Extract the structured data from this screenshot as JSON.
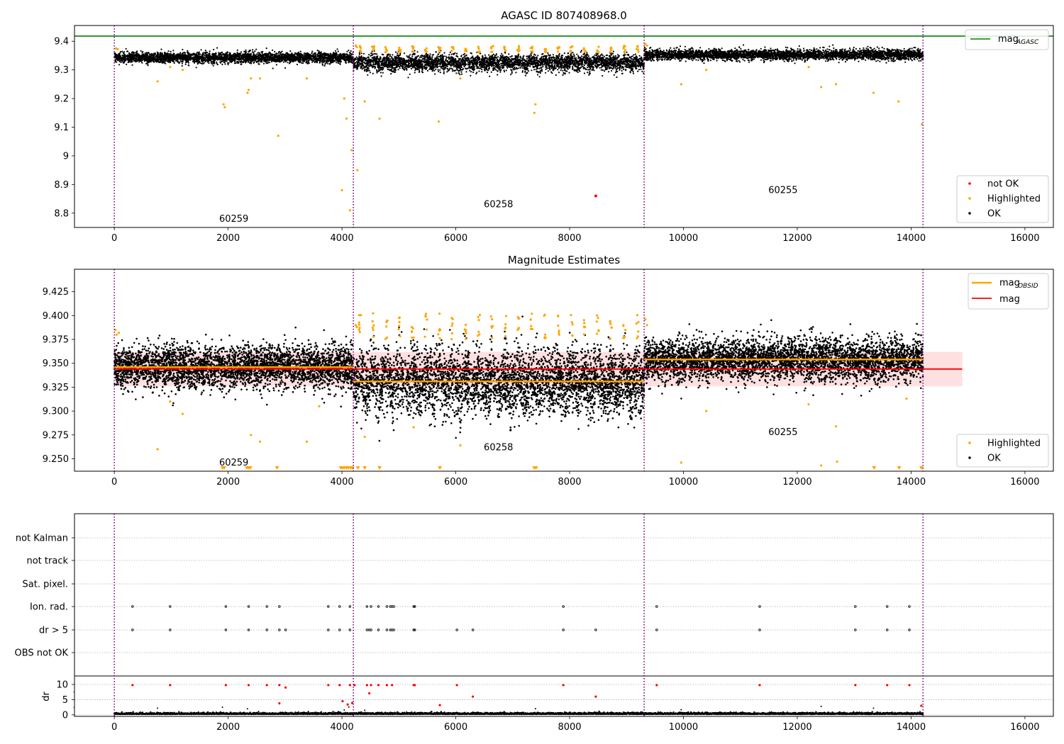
{
  "chart_data": [
    {
      "type": "scatter",
      "title": "AGASC ID 807408968.0",
      "xlim": [
        -700,
        16500
      ],
      "ylim": [
        8.75,
        9.455
      ],
      "xticks": [
        0,
        2000,
        4000,
        6000,
        8000,
        10000,
        12000,
        14000,
        16000
      ],
      "yticks": [
        8.8,
        8.9,
        9.0,
        9.1,
        9.2,
        9.3,
        9.4
      ],
      "mag_agasc": 9.418,
      "obsid_boundaries": [
        0,
        4200,
        9310,
        14210
      ],
      "obsid_labels": [
        {
          "text": "60259",
          "x": 2100,
          "y": 8.78
        },
        {
          "text": "60258",
          "x": 6750,
          "y": 8.83
        },
        {
          "text": "60255",
          "x": 11750,
          "y": 8.88
        }
      ],
      "legend_top": {
        "placement": "top-right",
        "entries": [
          {
            "label": "mag",
            "sub": "AGASC",
            "color": "#008000"
          }
        ]
      },
      "legend_bottom": {
        "placement": "bottom-right",
        "entries": [
          {
            "label": "not OK",
            "color": "#ff0000"
          },
          {
            "label": "Highlighted",
            "color": "#ffa500"
          },
          {
            "label": "OK",
            "color": "#000000"
          }
        ]
      },
      "segments": [
        {
          "x0": 0,
          "x1": 4200,
          "mean": 9.343,
          "spread": 0.009,
          "cycles": 0
        },
        {
          "x0": 4200,
          "x1": 9310,
          "mean": 9.325,
          "spread": 0.014,
          "cycles": 22
        },
        {
          "x0": 9310,
          "x1": 14210,
          "mean": 9.353,
          "spread": 0.009,
          "cycles": 0
        }
      ],
      "highlighted_points": [
        [
          760,
          9.26
        ],
        [
          1200,
          9.3
        ],
        [
          1920,
          9.18
        ],
        [
          1940,
          9.17
        ],
        [
          2340,
          9.22
        ],
        [
          2400,
          9.27
        ],
        [
          2360,
          9.23
        ],
        [
          2560,
          9.27
        ],
        [
          2880,
          9.07
        ],
        [
          3380,
          9.27
        ],
        [
          4000,
          8.88
        ],
        [
          4040,
          9.2
        ],
        [
          4080,
          9.13
        ],
        [
          4140,
          8.81
        ],
        [
          4170,
          9.02
        ],
        [
          4270,
          8.95
        ],
        [
          4400,
          9.19
        ],
        [
          4660,
          9.13
        ],
        [
          5700,
          9.12
        ],
        [
          6080,
          9.27
        ],
        [
          7400,
          9.18
        ],
        [
          7380,
          9.15
        ],
        [
          9960,
          9.25
        ],
        [
          10400,
          9.3
        ],
        [
          12200,
          9.31
        ],
        [
          12420,
          9.24
        ],
        [
          12680,
          9.25
        ],
        [
          13340,
          9.22
        ],
        [
          13780,
          9.19
        ],
        [
          14190,
          9.11
        ],
        [
          980,
          9.31
        ]
      ],
      "not_ok_points": [
        [
          8460,
          8.86
        ]
      ]
    },
    {
      "type": "scatter",
      "title": "Magnitude Estimates",
      "xlim": [
        -700,
        16500
      ],
      "ylim": [
        9.237,
        9.4485
      ],
      "xticks": [
        0,
        2000,
        4000,
        6000,
        8000,
        10000,
        12000,
        14000,
        16000
      ],
      "yticks": [
        9.25,
        9.275,
        9.3,
        9.325,
        9.35,
        9.375,
        9.4,
        9.425
      ],
      "ytick_labels": [
        "9.250",
        "9.275",
        "9.300",
        "9.325",
        "9.350",
        "9.375",
        "9.400",
        "9.425"
      ],
      "mag": 9.344,
      "mag_band": [
        9.326,
        9.362
      ],
      "mag_band_xrange": [
        0,
        14900
      ],
      "obsid_means": [
        {
          "x0": 0,
          "x1": 4200,
          "value": 9.346
        },
        {
          "x0": 4200,
          "x1": 9310,
          "value": 9.331
        },
        {
          "x0": 9310,
          "x1": 14210,
          "value": 9.354
        }
      ],
      "obsid_boundaries": [
        0,
        4200,
        9310,
        14210
      ],
      "obsid_labels": [
        {
          "text": "60259",
          "x": 2100,
          "y": 9.246
        },
        {
          "text": "60258",
          "x": 6750,
          "y": 9.262
        },
        {
          "text": "60255",
          "x": 11750,
          "y": 9.278
        }
      ],
      "legend_top": {
        "placement": "top-right",
        "entries": [
          {
            "label": "mag",
            "sub": "OBSID",
            "color": "#ffa500"
          },
          {
            "label": "mag",
            "sub": "",
            "color": "#ff0000"
          }
        ]
      },
      "legend_bottom": {
        "placement": "bottom-right",
        "entries": [
          {
            "label": "Highlighted",
            "color": "#ffa500"
          },
          {
            "label": "OK",
            "color": "#000000"
          }
        ]
      },
      "segments": [
        {
          "x0": 0,
          "x1": 4200,
          "mean": 9.346,
          "spread": 0.011,
          "cycles": 0
        },
        {
          "x0": 4200,
          "x1": 9310,
          "mean": 9.331,
          "spread": 0.017,
          "cycles": 22
        },
        {
          "x0": 9310,
          "x1": 14210,
          "mean": 9.354,
          "spread": 0.011,
          "cycles": 0
        }
      ],
      "highlighted_points": [
        [
          760,
          9.26
        ],
        [
          1200,
          9.297
        ],
        [
          980,
          9.31
        ],
        [
          2400,
          9.275
        ],
        [
          2560,
          9.268
        ],
        [
          3380,
          9.268
        ],
        [
          3600,
          9.305
        ],
        [
          4400,
          9.273
        ],
        [
          5260,
          9.283
        ],
        [
          6080,
          9.264
        ],
        [
          10400,
          9.3
        ],
        [
          12200,
          9.307
        ],
        [
          12680,
          9.284
        ],
        [
          13920,
          9.313
        ],
        [
          9960,
          9.246
        ],
        [
          12420,
          9.243
        ],
        [
          12700,
          9.247
        ]
      ],
      "clipped_points_x": [
        1900,
        1930,
        2330,
        2360,
        2390,
        2860,
        3980,
        4010,
        4040,
        4080,
        4110,
        4150,
        4180,
        4280,
        4400,
        4660,
        5720,
        7380,
        7410,
        13350,
        13790,
        14180
      ]
    },
    {
      "type": "scatter",
      "title": "",
      "xlim": [
        -700,
        16500
      ],
      "xticks": [
        0,
        2000,
        4000,
        6000,
        8000,
        10000,
        12000,
        14000,
        16000
      ],
      "flag_rows": [
        "not Kalman",
        "not track",
        "Sat. pixel.",
        "Ion. rad.",
        "dr > 5",
        "OBS not OK"
      ],
      "obsid_boundaries": [
        0,
        4200,
        9310,
        14210
      ],
      "ion_rad_x": [
        320,
        980,
        1960,
        2360,
        2680,
        2900,
        3760,
        3960,
        4140,
        4440,
        4510,
        4640,
        4790,
        4850,
        4880,
        4910,
        5260,
        5280,
        7890,
        9530,
        11340,
        13020,
        13580,
        13970
      ],
      "dr5_x": [
        320,
        980,
        1960,
        2360,
        2680,
        2900,
        3010,
        3760,
        3960,
        4140,
        4440,
        4480,
        4510,
        4640,
        4790,
        4850,
        4880,
        4910,
        5260,
        5280,
        6020,
        6300,
        7890,
        8460,
        9530,
        11340,
        13020,
        13580,
        13970
      ],
      "dr": {
        "ylim": [
          -0.5,
          12.8
        ],
        "yticks": [
          0,
          5,
          10
        ],
        "ylabel": "dr",
        "segments": [
          [
            0,
            14210
          ]
        ],
        "red_points": [
          [
            320,
            9.8
          ],
          [
            980,
            9.8
          ],
          [
            1960,
            9.8
          ],
          [
            2360,
            9.8
          ],
          [
            2680,
            9.8
          ],
          [
            2900,
            9.8
          ],
          [
            3010,
            9.0
          ],
          [
            2900,
            3.8
          ],
          [
            3760,
            9.8
          ],
          [
            3960,
            9.8
          ],
          [
            4010,
            4.5
          ],
          [
            4100,
            3.4
          ],
          [
            4140,
            9.8
          ],
          [
            4180,
            3.9
          ],
          [
            4220,
            9.8
          ],
          [
            4440,
            9.8
          ],
          [
            4480,
            7.1
          ],
          [
            4510,
            9.8
          ],
          [
            4640,
            9.8
          ],
          [
            4790,
            9.8
          ],
          [
            4880,
            9.8
          ],
          [
            5260,
            9.8
          ],
          [
            5280,
            9.8
          ],
          [
            5720,
            3.2
          ],
          [
            6020,
            9.8
          ],
          [
            6300,
            6.0
          ],
          [
            7890,
            9.8
          ],
          [
            8460,
            6.0
          ],
          [
            9530,
            9.8
          ],
          [
            11340,
            9.8
          ],
          [
            13020,
            9.8
          ],
          [
            13580,
            9.8
          ],
          [
            13970,
            9.8
          ],
          [
            14180,
            3.0
          ]
        ],
        "black_outliers": [
          [
            760,
            2.2
          ],
          [
            1900,
            2.5
          ],
          [
            2340,
            2.0
          ],
          [
            4040,
            1.6
          ],
          [
            4120,
            2.6
          ],
          [
            4400,
            1.5
          ],
          [
            7400,
            2.0
          ],
          [
            12420,
            2.8
          ],
          [
            13340,
            2.2
          ],
          [
            9960,
            1.7
          ]
        ]
      }
    }
  ]
}
